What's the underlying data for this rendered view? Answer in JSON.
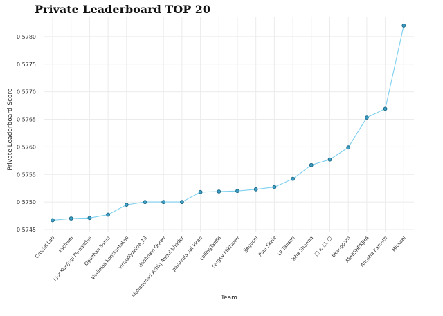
{
  "chart_data": {
    "type": "line",
    "title": "Private Leaderboard TOP 20",
    "xlabel": "Team",
    "ylabel": "Private Leaderboard Score",
    "ylim": [
      0.57445,
      0.57835
    ],
    "yticks": [
      0.5745,
      0.575,
      0.5755,
      0.576,
      0.5765,
      0.577,
      0.5775,
      0.578
    ],
    "grid": true,
    "line_color": "#7dcfef",
    "marker_color": "#3d9ec6",
    "categories": [
      "Crucial Lab",
      "zachwei",
      "Igor Kuivjogi Fernandes",
      "Oguzhan Sahin",
      "Vasileios Konstantakos",
      "virtuallyzaine_13",
      "Vaishnavi Gurav",
      "Muhammad Ashiq Abdul Khader",
      "pasuvula sai kiran",
      "callingTardis",
      "Sergey Mikhalev",
      "jjegochi",
      "Paul Skeie",
      "Lil Tansen",
      "Isha Sharma",
      "□ ± □, □",
      "bkangpam",
      "ABHISHEKJHA",
      "Anusha Kamath",
      "Mickael"
    ],
    "values": [
      0.57467,
      0.5747,
      0.57471,
      0.57477,
      0.57495,
      0.575,
      0.575,
      0.575,
      0.57518,
      0.57519,
      0.5752,
      0.57523,
      0.57527,
      0.57542,
      0.57567,
      0.57577,
      0.57599,
      0.57653,
      0.57669,
      0.5782
    ]
  }
}
